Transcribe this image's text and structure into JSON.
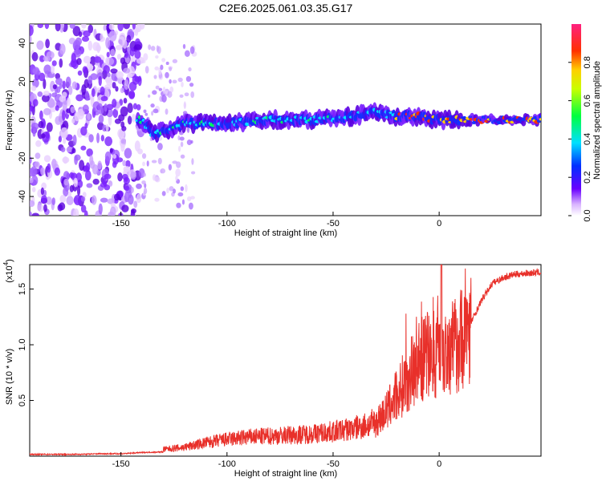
{
  "chart_data": [
    {
      "type": "heatmap",
      "title": "C2E6.2025.061.03.35.G17",
      "xlabel": "Height of straight line (km)",
      "ylabel": "Frequency (Hz)",
      "xlim": [
        -193,
        48
      ],
      "ylim": [
        -50,
        50
      ],
      "xticks": [
        -150,
        -100,
        -50,
        0
      ],
      "yticks": [
        40,
        20,
        0,
        -20,
        -40
      ],
      "colorbar": {
        "label": "Normalized spectral amplitude",
        "range": [
          0,
          1
        ],
        "ticks": [
          "0.0",
          "0.2",
          "0.4",
          "0.6",
          "0.8"
        ]
      },
      "description_series": [
        {
          "name": "",
          "x": [
            -190,
            -170,
            -150,
            -140,
            -135,
            -120,
            -100,
            -80,
            -60,
            -40,
            -30,
            -20,
            -10,
            0,
            10,
            20,
            30,
            48
          ],
          "y": [
            0,
            0,
            0,
            0,
            -8,
            -2,
            -2,
            0,
            0,
            2,
            4,
            2,
            2,
            0,
            0,
            0,
            0,
            0
          ]
        }
      ]
    },
    {
      "type": "line",
      "xlabel": "Height of straight line (km)",
      "ylabel": "SNR (10 * v/v)",
      "yscale_label": "(x10",
      "yscale_exp": "4",
      "xlim": [
        -193,
        48
      ],
      "ylim": [
        0,
        1.72
      ],
      "xticks": [
        -150,
        -100,
        -50,
        0
      ],
      "yticks": [
        0.5,
        1.0,
        1.5
      ],
      "ytick_labels": [
        "0.5",
        "1.0",
        "1.5"
      ],
      "color": "#e8302a",
      "series": [
        {
          "name": "",
          "x": [
            -193,
            -180,
            -170,
            -160,
            -150,
            -140,
            -130,
            -120,
            -110,
            -100,
            -90,
            -80,
            -70,
            -60,
            -50,
            -40,
            -30,
            -25,
            -20,
            -15,
            -10,
            -5,
            0,
            5,
            10,
            15,
            20,
            25,
            30,
            35,
            40,
            48
          ],
          "y": [
            0.02,
            0.02,
            0.02,
            0.03,
            0.03,
            0.05,
            0.06,
            0.08,
            0.12,
            0.15,
            0.17,
            0.18,
            0.19,
            0.2,
            0.22,
            0.25,
            0.3,
            0.4,
            0.55,
            0.7,
            0.85,
            0.9,
            0.95,
            0.95,
            1.05,
            1.2,
            1.4,
            1.55,
            1.6,
            1.63,
            1.64,
            1.65
          ]
        }
      ]
    }
  ]
}
